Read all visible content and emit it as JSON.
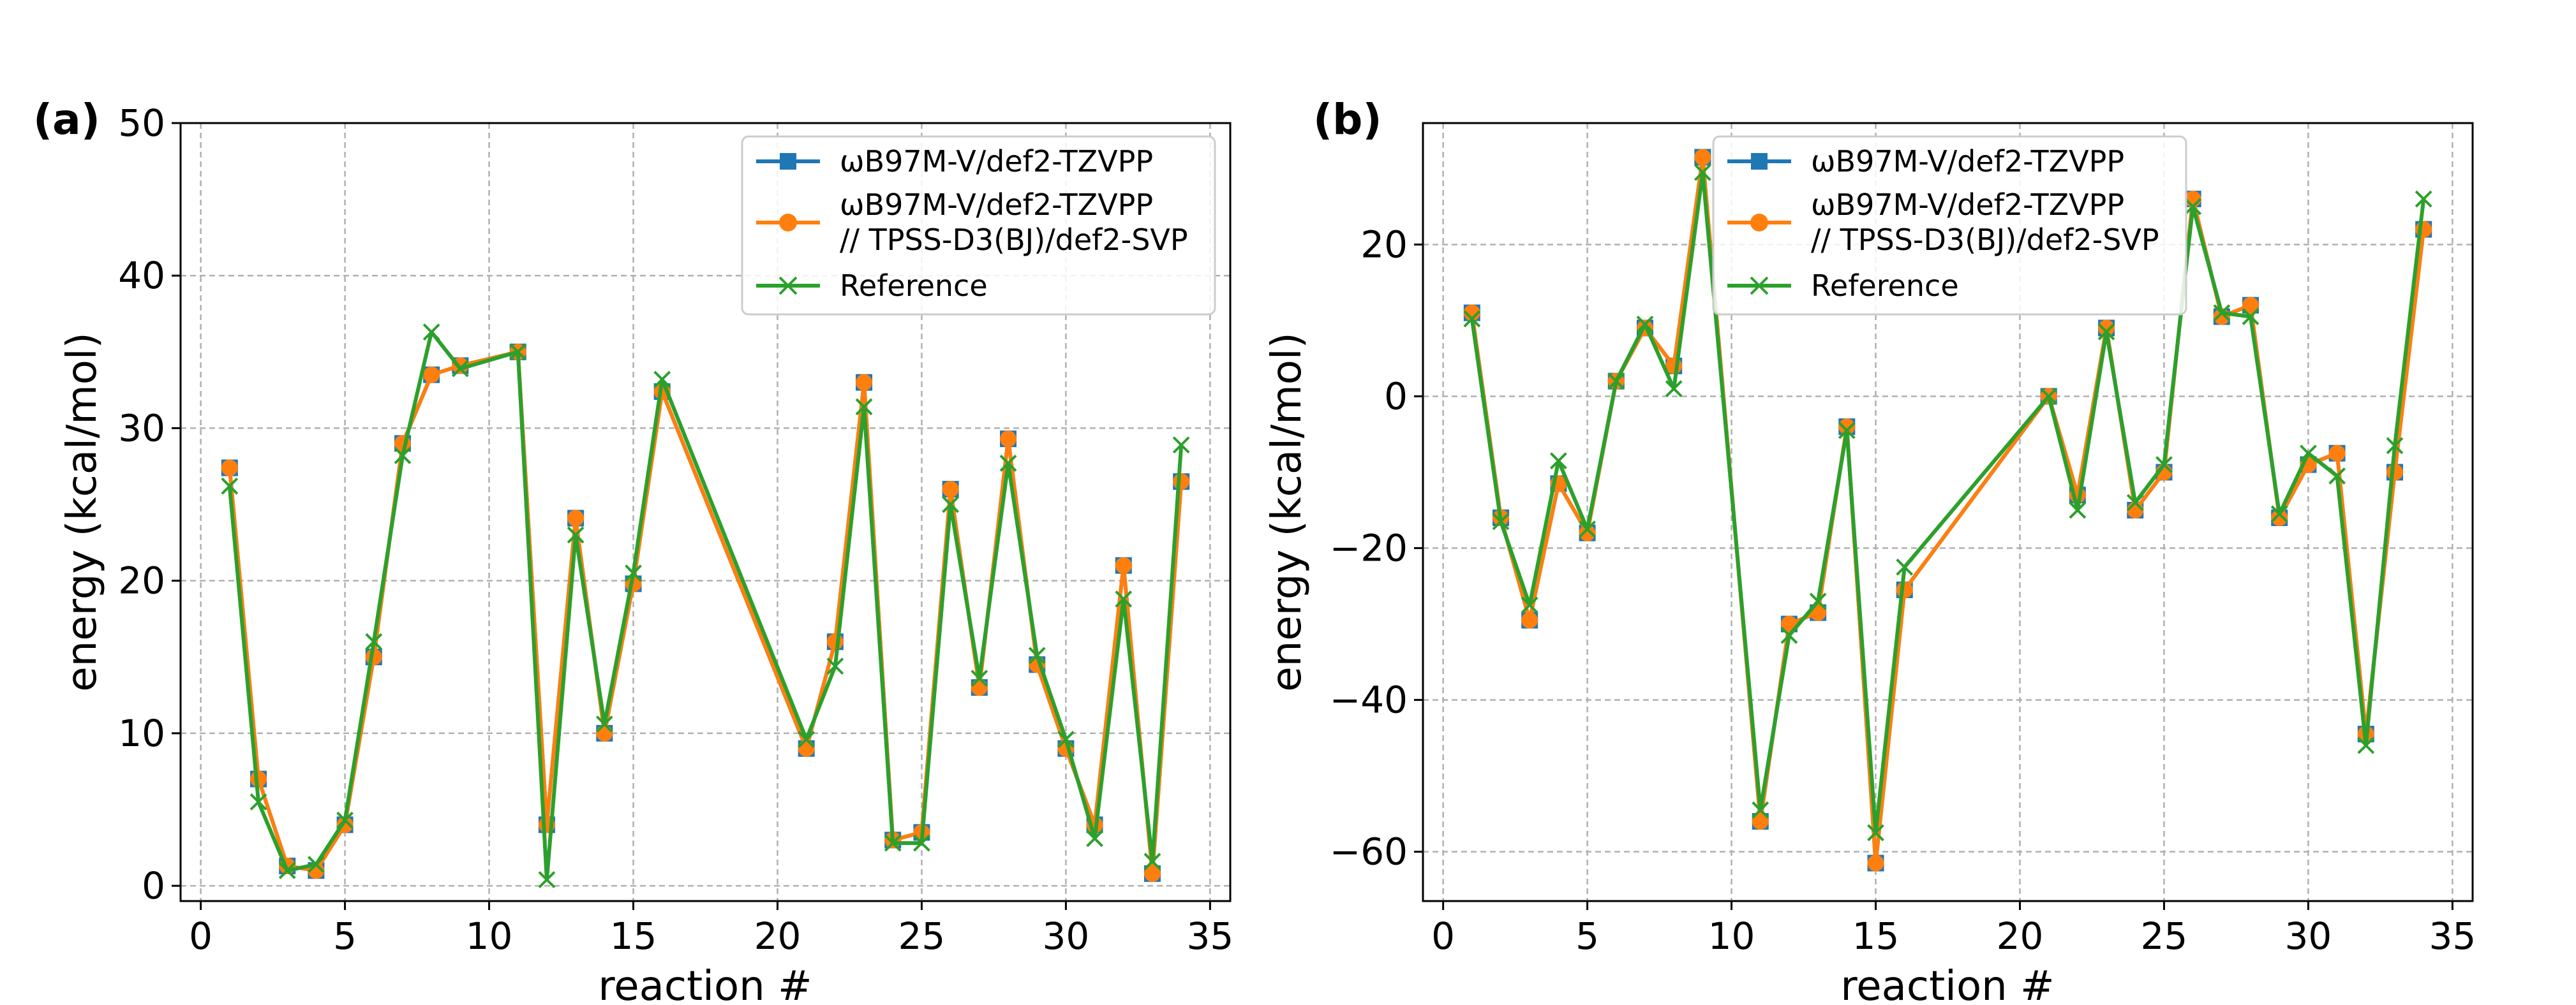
{
  "figure": {
    "panels": [
      "(a)",
      "(b)"
    ],
    "legend_labels": [
      "ωB97M-V/def2-TZVPP",
      "ωB97M-V/def2-TZVPP",
      "// TPSS-D3(BJ)/def2-SVP",
      "Reference"
    ]
  },
  "chart_data": [
    {
      "type": "line",
      "panel": "(a)",
      "xlabel": "reaction #",
      "ylabel": "energy (kcal/mol)",
      "xlim": [
        -0.7,
        35.7
      ],
      "ylim": [
        -1,
        50
      ],
      "xticks": [
        0,
        5,
        10,
        15,
        20,
        25,
        30,
        35
      ],
      "yticks": [
        0,
        10,
        20,
        30,
        40,
        50
      ],
      "grid": true,
      "legend_position": "top-right",
      "x": [
        1,
        2,
        3,
        4,
        5,
        6,
        7,
        8,
        9,
        11,
        12,
        13,
        14,
        15,
        16,
        21,
        22,
        23,
        24,
        25,
        26,
        27,
        28,
        29,
        30,
        31,
        32,
        33,
        34
      ],
      "series": [
        {
          "name": "ωB97M-V/def2-TZVPP",
          "color": "#1f77b4",
          "marker": "square",
          "values": [
            27.4,
            7.0,
            1.3,
            1.0,
            4.0,
            15.0,
            29.0,
            33.5,
            34.1,
            35.0,
            4.0,
            24.1,
            10.0,
            19.8,
            32.4,
            9.0,
            16.0,
            33.0,
            3.0,
            3.5,
            26.0,
            13.0,
            29.3,
            14.5,
            9.0,
            4.0,
            21.0,
            0.8,
            26.5
          ]
        },
        {
          "name": "ωB97M-V/def2-TZVPP // TPSS-D3(BJ)/def2-SVP",
          "color": "#ff7f0e",
          "marker": "circle",
          "values": [
            27.4,
            7.0,
            1.3,
            1.0,
            4.0,
            15.0,
            29.0,
            33.5,
            34.1,
            35.0,
            4.0,
            24.1,
            10.0,
            19.8,
            32.4,
            9.0,
            16.0,
            33.0,
            3.0,
            3.5,
            26.0,
            13.0,
            29.3,
            14.5,
            9.0,
            4.0,
            21.0,
            0.8,
            26.5
          ]
        },
        {
          "name": "Reference",
          "color": "#2ca02c",
          "marker": "x",
          "values": [
            26.2,
            5.5,
            1.0,
            1.4,
            4.3,
            16.0,
            28.2,
            36.3,
            33.9,
            35.0,
            0.4,
            23.0,
            10.6,
            20.5,
            33.2,
            9.6,
            14.4,
            31.4,
            2.8,
            2.8,
            25.0,
            13.6,
            27.7,
            15.1,
            9.6,
            3.1,
            18.8,
            1.6,
            28.9
          ]
        }
      ]
    },
    {
      "type": "line",
      "panel": "(b)",
      "xlabel": "reaction #",
      "ylabel": "energy (kcal/mol)",
      "xlim": [
        -0.7,
        35.7
      ],
      "ylim": [
        -66.5,
        36
      ],
      "xticks": [
        0,
        5,
        10,
        15,
        20,
        25,
        30,
        35
      ],
      "yticks": [
        -60,
        -40,
        -20,
        0,
        20
      ],
      "grid": true,
      "legend_position": "top-center",
      "x": [
        1,
        2,
        3,
        4,
        5,
        6,
        7,
        8,
        9,
        11,
        12,
        13,
        14,
        15,
        16,
        21,
        22,
        23,
        24,
        25,
        26,
        27,
        28,
        29,
        30,
        31,
        32,
        33,
        34
      ],
      "series": [
        {
          "name": "ωB97M-V/def2-TZVPP",
          "color": "#1f77b4",
          "marker": "square",
          "values": [
            11.0,
            -16.0,
            -29.5,
            -11.5,
            -18.0,
            2.0,
            9.0,
            4.0,
            31.5,
            -56.0,
            -30.0,
            -28.5,
            -4.0,
            -61.5,
            -25.5,
            0.0,
            -13.0,
            9.0,
            -15.0,
            -10.0,
            26.0,
            10.5,
            12.0,
            -16.0,
            -9.0,
            -7.5,
            -44.5,
            -10.0,
            22.0
          ]
        },
        {
          "name": "ωB97M-V/def2-TZVPP // TPSS-D3(BJ)/def2-SVP",
          "color": "#ff7f0e",
          "marker": "circle",
          "values": [
            11.0,
            -16.0,
            -29.5,
            -11.5,
            -18.0,
            2.0,
            9.0,
            4.0,
            31.5,
            -56.0,
            -30.0,
            -28.5,
            -4.0,
            -61.5,
            -25.5,
            0.0,
            -13.0,
            9.0,
            -15.0,
            -10.0,
            26.0,
            10.5,
            12.0,
            -16.0,
            -9.0,
            -7.5,
            -44.5,
            -10.0,
            22.0
          ]
        },
        {
          "name": "Reference",
          "color": "#2ca02c",
          "marker": "x",
          "values": [
            10.2,
            -16.5,
            -27.5,
            -8.5,
            -17.5,
            2.0,
            9.5,
            1.0,
            29.5,
            -54.5,
            -31.5,
            -27.0,
            -4.5,
            -57.5,
            -22.5,
            0.0,
            -15.0,
            8.5,
            -14.0,
            -9.0,
            25.0,
            11.0,
            10.5,
            -15.5,
            -7.5,
            -10.5,
            -46.0,
            -6.5,
            26.0
          ]
        }
      ]
    }
  ]
}
